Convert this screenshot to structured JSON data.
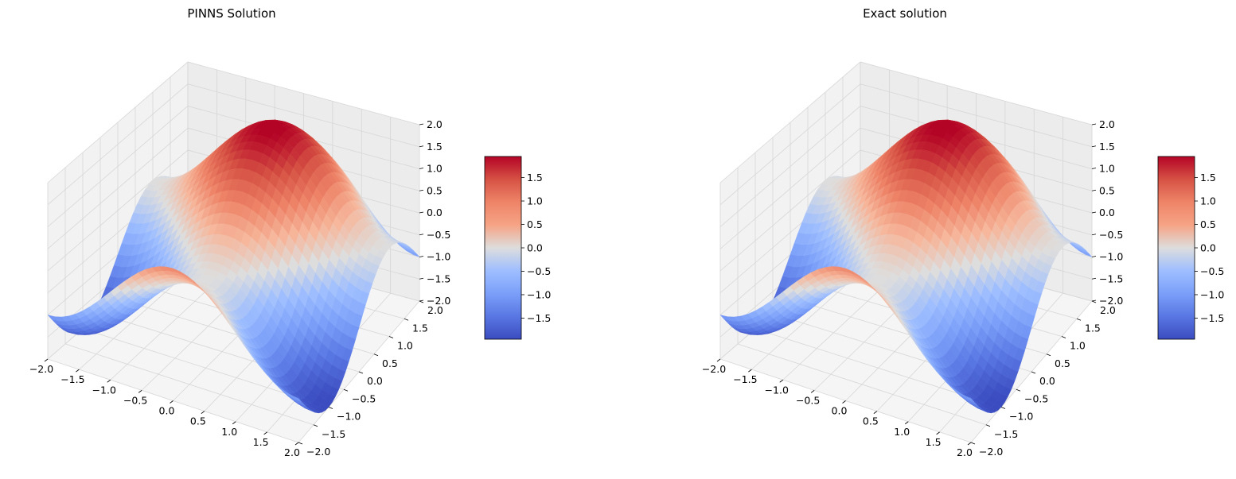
{
  "chart_data": [
    {
      "type": "surface3d",
      "title": "PINNS Solution",
      "x_range": [
        -2,
        2
      ],
      "y_range": [
        -2,
        2
      ],
      "zlim": [
        -2,
        2
      ],
      "x_ticks": [
        "−2.0",
        "−1.5",
        "−1.0",
        "−0.5",
        "0.0",
        "0.5",
        "1.0",
        "1.5",
        "2.0"
      ],
      "y_ticks": [
        "−2.0",
        "−1.5",
        "−1.0",
        "−0.5",
        "0.0",
        "0.5",
        "1.0",
        "1.5",
        "2.0"
      ],
      "z_ticks": [
        "−2.0",
        "−1.5",
        "−1.0",
        "−0.5",
        "0.0",
        "0.5",
        "1.0",
        "1.5",
        "2.0"
      ],
      "colormap": "coolwarm",
      "colorbar": {
        "range": [
          -1.95,
          1.95
        ],
        "ticks": [
          "−1.5",
          "−1.0",
          "−0.5",
          "0.0",
          "0.5",
          "1.0",
          "1.5"
        ]
      },
      "grid": true
    },
    {
      "type": "surface3d",
      "title": "Exact solution",
      "x_range": [
        -2,
        2
      ],
      "y_range": [
        -2,
        2
      ],
      "zlim": [
        -2,
        2
      ],
      "x_ticks": [
        "−2.0",
        "−1.5",
        "−1.0",
        "−0.5",
        "0.0",
        "0.5",
        "1.0",
        "1.5",
        "2.0"
      ],
      "y_ticks": [
        "−2.0",
        "−1.5",
        "−1.0",
        "−0.5",
        "0.0",
        "0.5",
        "1.0",
        "1.5",
        "2.0"
      ],
      "z_ticks": [
        "−2.0",
        "−1.5",
        "−1.0",
        "−0.5",
        "0.0",
        "0.5",
        "1.0",
        "1.5",
        "2.0"
      ],
      "colormap": "coolwarm",
      "colorbar": {
        "range": [
          -1.95,
          1.95
        ],
        "ticks": [
          "−1.5",
          "−1.0",
          "−0.5",
          "0.0",
          "0.5",
          "1.0",
          "1.5"
        ]
      },
      "grid": true
    }
  ],
  "colors": {
    "pane_back": "#f2f2f2",
    "pane_floor": "#f5f5f5",
    "grid": "#d6d6d6",
    "cmap_low": "#3b4cc0",
    "cmap_mid": "#dddddd",
    "cmap_high": "#b40426"
  }
}
